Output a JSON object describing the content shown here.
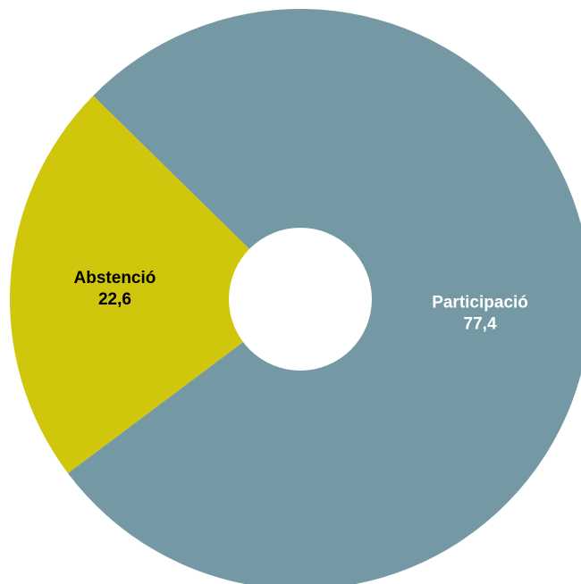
{
  "chart_data": {
    "type": "pie",
    "donut": true,
    "slices": [
      {
        "label": "Participació",
        "value": 77.4,
        "value_text": "77,4",
        "color": "#7599a4",
        "label_color": "#ffffff"
      },
      {
        "label": "Abstenció",
        "value": 22.6,
        "value_text": "22,6",
        "color": "#d0c60c",
        "label_color": "#000000"
      }
    ],
    "title": "",
    "legend": "none"
  }
}
